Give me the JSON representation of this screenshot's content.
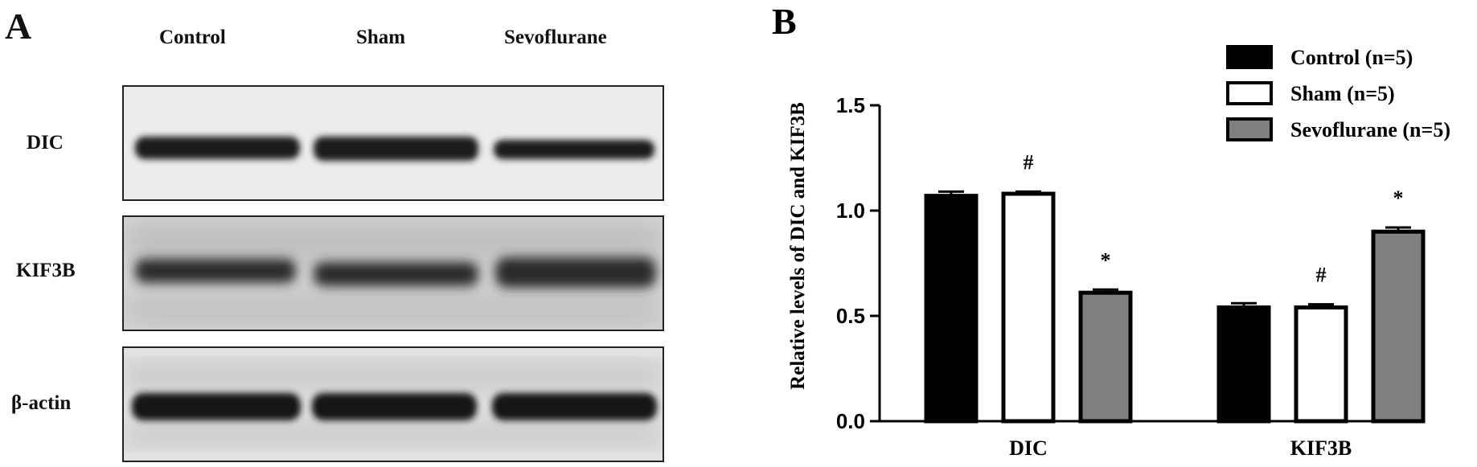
{
  "panel_a": {
    "letter": "A",
    "lanes": [
      "Control",
      "Sham",
      "Sevoflurane"
    ],
    "rows": [
      "DIC",
      "KIF3B",
      "β-actin"
    ]
  },
  "panel_b": {
    "letter": "B"
  },
  "chart_data": {
    "type": "bar",
    "title": "",
    "xlabel": "",
    "ylabel": "Relative levels of DIC and KIF3B",
    "categories": [
      "DIC",
      "KIF3B"
    ],
    "ylim": [
      0,
      1.5
    ],
    "yticks": [
      0.0,
      0.5,
      1.0,
      1.5
    ],
    "ytick_labels": [
      "0.0",
      "0.5",
      "1.0",
      "1.5"
    ],
    "grid": false,
    "legend_position": "top-right",
    "series": [
      {
        "name": "Control (n=5)",
        "color": "#000000",
        "values": [
          1.07,
          0.54
        ],
        "errors": [
          0.02,
          0.02
        ],
        "annotations": [
          "",
          ""
        ]
      },
      {
        "name": "Sham (n=5)",
        "color": "#ffffff",
        "values": [
          1.08,
          0.54
        ],
        "errors": [
          0.01,
          0.015
        ],
        "annotations": [
          "#",
          "#"
        ]
      },
      {
        "name": "Sevoflurane (n=5)",
        "color": "#808080",
        "values": [
          0.61,
          0.9
        ],
        "errors": [
          0.015,
          0.02
        ],
        "annotations": [
          "*",
          "*"
        ]
      }
    ]
  }
}
